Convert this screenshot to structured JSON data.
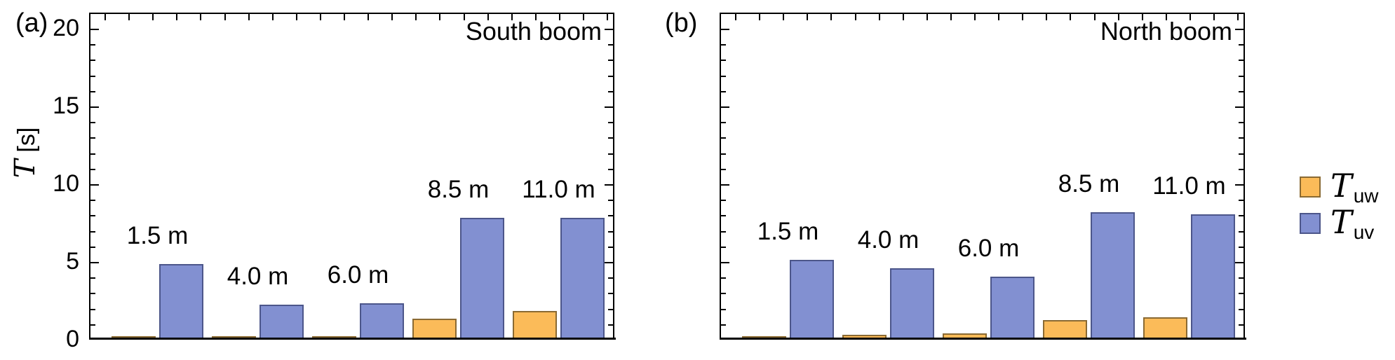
{
  "figure": {
    "panels": [
      {
        "id": "a",
        "index_label": "(a)",
        "corner_label": "South boom"
      },
      {
        "id": "b",
        "index_label": "(b)",
        "corner_label": "North boom"
      }
    ],
    "y_axis": {
      "symbol": "T",
      "units": "[s]",
      "ticks": [
        0,
        5,
        10,
        15,
        20
      ]
    },
    "legend": [
      {
        "symbol": "T",
        "subscript": "uw",
        "color": "#FBBB59",
        "edge": "#8A6A33"
      },
      {
        "symbol": "T",
        "subscript": "uv",
        "color": "#8290D1",
        "edge": "#4C568A"
      }
    ]
  },
  "chart_data": [
    {
      "type": "bar",
      "title": "South boom",
      "categories": [
        "1.5 m",
        "4.0 m",
        "6.0 m",
        "8.5 m",
        "11.0 m"
      ],
      "series": [
        {
          "name": "T_uw",
          "color": "#FBBB59",
          "edge": "#8A6A33",
          "values": [
            0.2,
            0.2,
            0.2,
            1.3,
            1.8
          ]
        },
        {
          "name": "T_uv",
          "color": "#8290D1",
          "edge": "#4C568A",
          "values": [
            4.8,
            2.2,
            2.3,
            7.8,
            7.8
          ]
        }
      ],
      "xlabel": "",
      "ylabel": "T [s]",
      "ylim": [
        0,
        21
      ],
      "yticks": [
        0,
        5,
        10,
        15,
        20
      ],
      "grid": false,
      "legend_position": "right"
    },
    {
      "type": "bar",
      "title": "North boom",
      "categories": [
        "1.5 m",
        "4.0 m",
        "6.0 m",
        "8.5 m",
        "11.0 m"
      ],
      "series": [
        {
          "name": "T_uw",
          "color": "#FBBB59",
          "edge": "#8A6A33",
          "values": [
            0.2,
            0.25,
            0.35,
            1.2,
            1.4
          ]
        },
        {
          "name": "T_uv",
          "color": "#8290D1",
          "edge": "#4C568A",
          "values": [
            5.1,
            4.55,
            4.0,
            8.15,
            8.0
          ]
        }
      ],
      "xlabel": "",
      "ylabel": "T [s]",
      "ylim": [
        0,
        21
      ],
      "yticks": [
        0,
        5,
        10,
        15,
        20
      ],
      "grid": false,
      "legend_position": "right"
    }
  ]
}
